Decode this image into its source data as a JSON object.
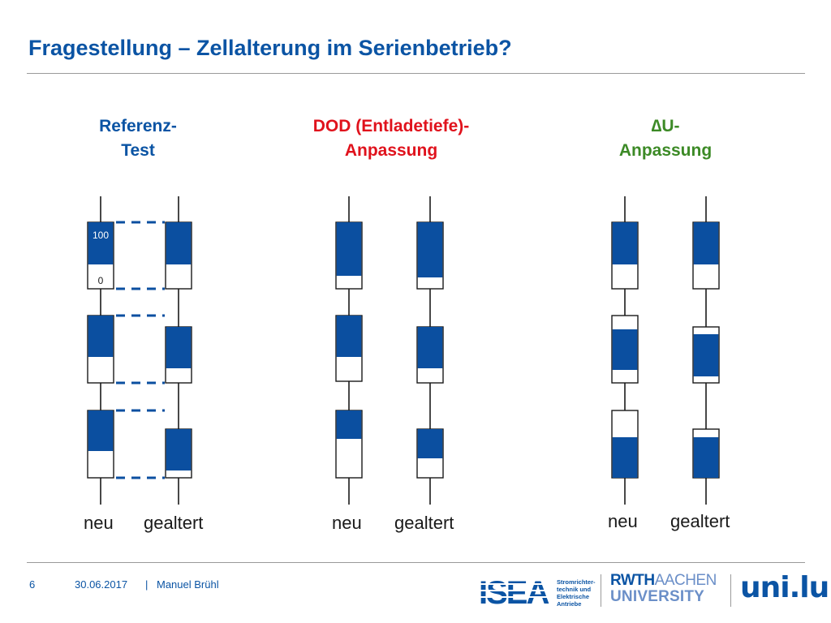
{
  "slide": {
    "title": "Fragestellung – Zellalterung im Serienbetrieb?",
    "page_number": "6",
    "date": "30.06.2017",
    "separator": "|",
    "author": "Manuel Brühl"
  },
  "columns": [
    {
      "heading_line1": "Referenz-",
      "heading_line2": "Test",
      "heading_color": "#0b54a4",
      "label_left": "neu",
      "label_right": "gealtert",
      "soc_top_label": "100",
      "soc_bottom_label": "0"
    },
    {
      "heading_line1": "DOD (Entladetiefe)-",
      "heading_line2": "Anpassung",
      "heading_color": "#e0121c",
      "label_left": "neu",
      "label_right": "gealtert"
    },
    {
      "heading_line1": "∆U-",
      "heading_line2": "Anpassung",
      "heading_color": "#3c8a26",
      "label_left": "neu",
      "label_right": "gealtert"
    }
  ],
  "logos": {
    "isea": "ISEA",
    "isea_subtitle": [
      "Stromrichter-",
      "technik und",
      "Elektrische",
      "Antriebe"
    ],
    "rwth": "RWTH",
    "rwth_aachen": "AACHEN",
    "rwth_university": "UNIVERSITY",
    "unilu": "uni.lu"
  },
  "colors": {
    "accent_blue": "#0b54a4",
    "fill_blue": "#0b4fa0",
    "dod_red": "#e0121c",
    "du_green": "#3c8a26"
  }
}
